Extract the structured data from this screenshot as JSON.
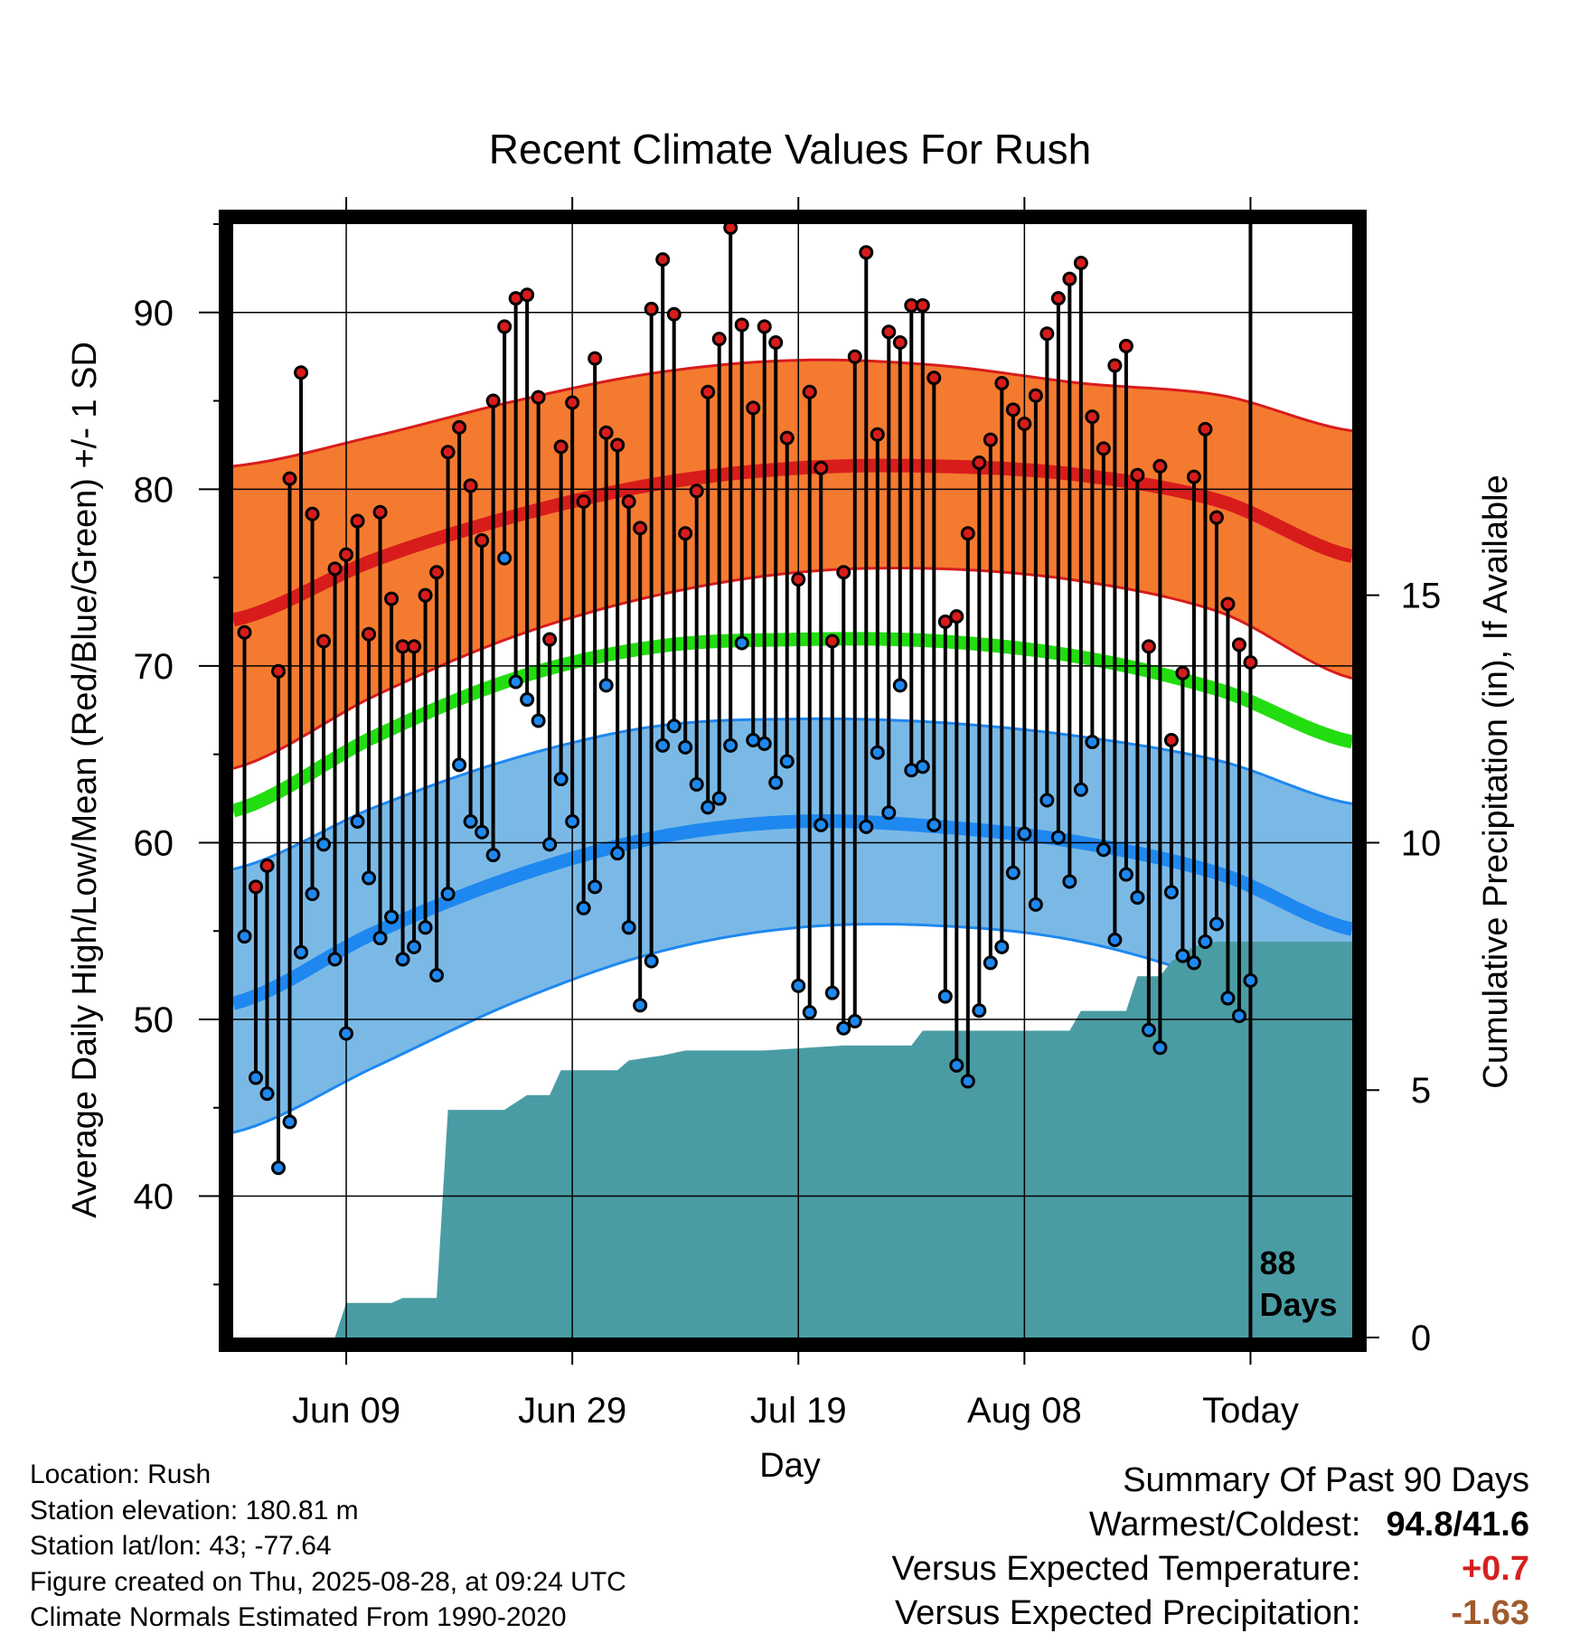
{
  "chart_data": {
    "type": "line",
    "title": "Recent Climate Values For Rush",
    "xlabel": "Day",
    "ylabel": "Average Daily High/Low/Mean (Red/Blue/Green) +/- 1 SD",
    "y2label": "Cumulative Precipitation (in), If Available",
    "xlim_days": [
      -90,
      9
    ],
    "ylim": [
      32,
      95
    ],
    "y2lim": [
      0,
      22.5
    ],
    "x_ticks": [
      {
        "day": -80,
        "label": "Jun 09"
      },
      {
        "day": -60,
        "label": "Jun 29"
      },
      {
        "day": -40,
        "label": "Jul 19"
      },
      {
        "day": -20,
        "label": "Aug 08"
      },
      {
        "day": 0,
        "label": "Today"
      }
    ],
    "y_ticks": [
      40,
      50,
      60,
      70,
      80,
      90
    ],
    "y2_ticks": [
      0,
      5,
      10,
      15
    ],
    "grid": true,
    "today_label": "88\nDays",
    "daily_high": [
      71.9,
      57.5,
      58.7,
      69.7,
      80.6,
      86.6,
      78.6,
      71.4,
      75.5,
      76.3,
      78.2,
      71.8,
      78.7,
      73.8,
      71.1,
      71.1,
      74.0,
      75.3,
      82.1,
      83.5,
      80.2,
      77.1,
      85.0,
      89.2,
      90.8,
      91.0,
      85.2,
      71.5,
      82.4,
      84.9,
      79.3,
      87.4,
      83.2,
      82.5,
      79.3,
      77.8,
      90.2,
      93.0,
      89.9,
      77.5,
      79.9,
      85.5,
      88.5,
      94.8,
      89.3,
      84.6,
      89.2,
      88.3,
      82.9,
      74.9,
      85.5,
      81.2,
      71.4,
      75.3,
      87.5,
      93.4,
      83.1,
      88.9,
      88.3,
      90.4,
      90.4,
      86.3,
      72.5,
      72.8,
      77.5,
      81.5,
      82.8,
      86.0,
      84.5,
      83.7,
      85.3,
      88.8,
      90.8,
      91.9,
      92.8,
      84.1,
      82.3,
      87.0,
      88.1,
      80.8,
      71.1,
      81.3,
      65.8,
      69.6,
      80.7,
      83.4,
      78.4,
      73.5,
      71.2,
      70.2
    ],
    "daily_low": [
      54.7,
      46.7,
      45.8,
      41.6,
      44.2,
      53.8,
      57.1,
      59.9,
      53.4,
      49.2,
      61.2,
      58.0,
      54.6,
      55.8,
      53.4,
      54.1,
      55.2,
      52.5,
      57.1,
      64.4,
      61.2,
      60.6,
      59.3,
      76.1,
      69.1,
      68.1,
      66.9,
      59.9,
      63.6,
      61.2,
      56.3,
      57.5,
      68.9,
      59.4,
      55.2,
      50.8,
      53.3,
      65.5,
      66.6,
      65.4,
      63.3,
      62.0,
      62.5,
      65.5,
      71.3,
      65.8,
      65.6,
      63.4,
      64.6,
      51.9,
      50.4,
      61.0,
      51.5,
      49.5,
      49.9,
      60.9,
      65.1,
      61.7,
      68.9,
      64.1,
      64.3,
      61.0,
      51.3,
      47.4,
      46.5,
      50.5,
      53.2,
      54.1,
      58.3,
      60.5,
      56.5,
      62.4,
      60.3,
      57.8,
      63.0,
      65.7,
      59.6,
      54.5,
      58.2,
      56.9,
      49.4,
      48.4,
      57.2,
      53.6,
      53.2,
      54.4,
      55.4,
      51.2,
      50.2,
      52.2
    ],
    "normal_high_mean": [
      72.6,
      76.0,
      78.5,
      80.3,
      81.2,
      81.3,
      80.8,
      79.3,
      76.2
    ],
    "normal_high_minus_sd": [
      64.2,
      68.3,
      71.7,
      74.0,
      75.3,
      75.5,
      74.8,
      73.0,
      69.3
    ],
    "normal_high_plus_sd": [
      81.3,
      83.0,
      85.0,
      86.6,
      87.3,
      87.0,
      86.0,
      85.3,
      83.3
    ],
    "normal_mean": [
      61.8,
      66.0,
      69.3,
      71.1,
      71.5,
      71.4,
      70.5,
      68.6,
      65.7
    ],
    "normal_low_mean": [
      50.9,
      54.9,
      58.1,
      60.3,
      61.2,
      60.9,
      60.0,
      58.2,
      55.1
    ],
    "normal_low_minus_sd": [
      43.6,
      47.3,
      51.0,
      53.8,
      55.2,
      55.3,
      54.4,
      52.0,
      48.1
    ],
    "normal_low_plus_sd": [
      58.5,
      62.0,
      64.8,
      66.6,
      67.0,
      66.8,
      66.0,
      64.6,
      62.2
    ],
    "normal_days": [
      -90,
      -77.5,
      -65,
      -52.5,
      -40,
      -27.5,
      -15,
      -2.5,
      9
    ],
    "cumulative_precip": [
      [
        -90,
        0
      ],
      [
        -81,
        0
      ],
      [
        -80,
        0.7
      ],
      [
        -76,
        0.7
      ],
      [
        -75,
        0.8
      ],
      [
        -72,
        0.8
      ],
      [
        -71,
        4.6
      ],
      [
        -67,
        4.6
      ],
      [
        -66,
        4.6
      ],
      [
        -64,
        4.9
      ],
      [
        -62,
        4.9
      ],
      [
        -61,
        5.4
      ],
      [
        -56,
        5.4
      ],
      [
        -55,
        5.6
      ],
      [
        -52,
        5.7
      ],
      [
        -50,
        5.8
      ],
      [
        -43,
        5.8
      ],
      [
        -36,
        5.9
      ],
      [
        -30,
        5.9
      ],
      [
        -29,
        6.2
      ],
      [
        -16,
        6.2
      ],
      [
        -15,
        6.6
      ],
      [
        -11,
        6.6
      ],
      [
        -10,
        7.3
      ],
      [
        -8,
        7.3
      ],
      [
        -7,
        7.6
      ],
      [
        -5,
        7.9
      ],
      [
        -3,
        8.0
      ],
      [
        9,
        8.0
      ]
    ],
    "colors": {
      "high": "#d81c1c",
      "high_band": "#f47a30",
      "low": "#1e88f0",
      "low_band": "#7ab9e6",
      "mean": "#22dd10",
      "precip": "#4a9ca4"
    }
  },
  "info": {
    "location": "Location: Rush",
    "elevation": "Station elevation: 180.81 m",
    "latlon": "Station lat/lon: 43; -77.64",
    "created": "Figure created on Thu, 2025-08-28, at 09:24 UTC",
    "normals": "Climate Normals Estimated From 1990-2020"
  },
  "summary": {
    "heading": "Summary Of Past 90 Days",
    "warm_cold_label": "Warmest/Coldest:",
    "warm_cold_value": "94.8/41.6",
    "temp_label": "Versus Expected Temperature:",
    "temp_value": "+0.7",
    "precip_label": "Versus Expected Precipitation:",
    "precip_value": "-1.63"
  }
}
